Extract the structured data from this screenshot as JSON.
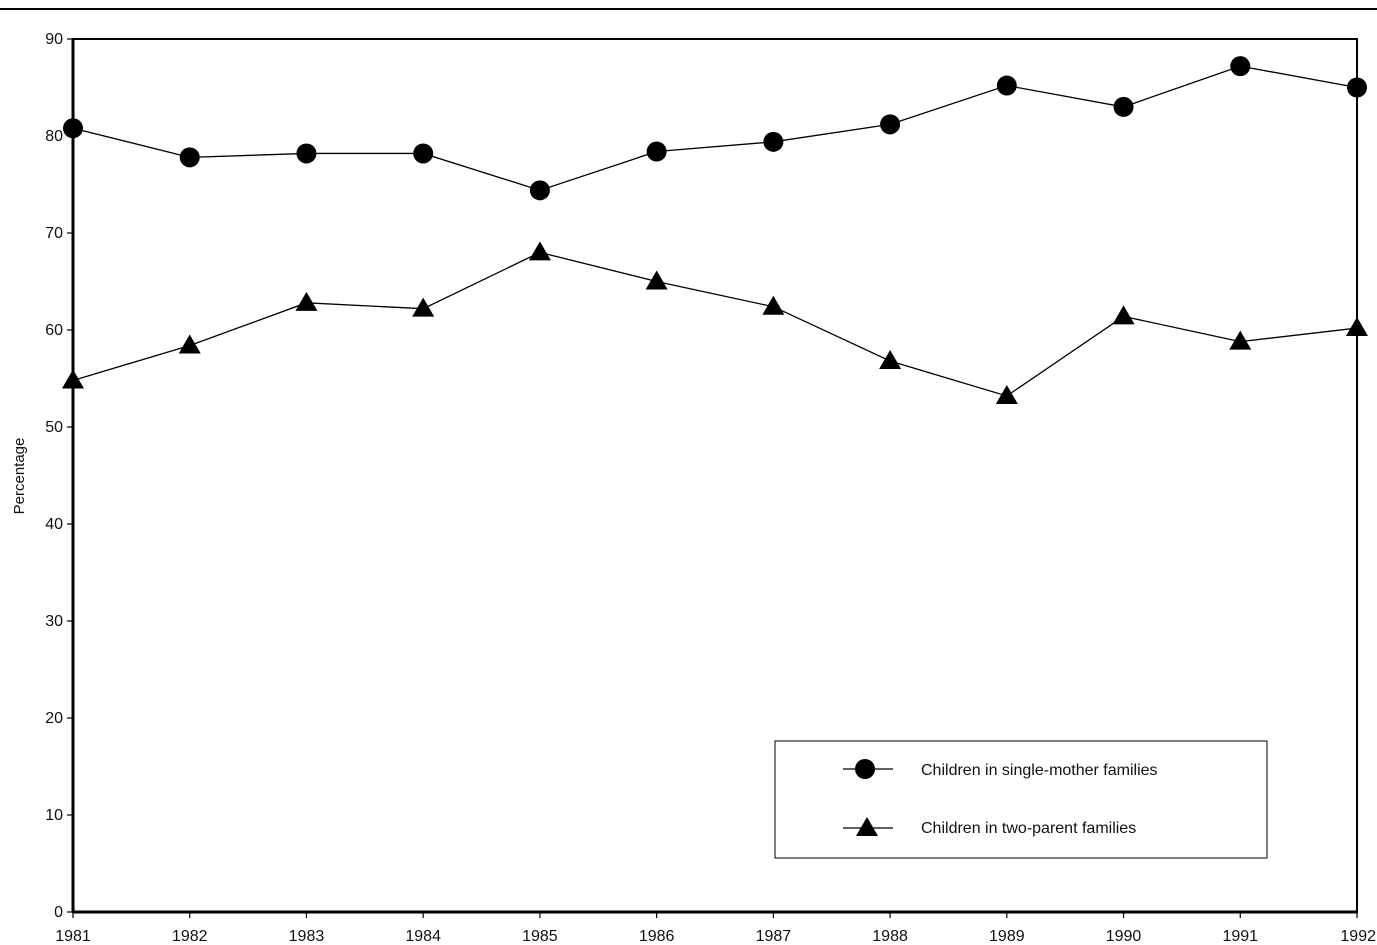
{
  "chart_data": {
    "type": "line",
    "title": "",
    "xlabel": "",
    "ylabel": "Percentage",
    "x": [
      "1981",
      "1982",
      "1983",
      "1984",
      "1985",
      "1986",
      "1987",
      "1988",
      "1989",
      "1990",
      "1991",
      "1992"
    ],
    "ylim": [
      0,
      90
    ],
    "yticks": [
      "0",
      "10",
      "20",
      "30",
      "40",
      "50",
      "60",
      "70",
      "80",
      "90"
    ],
    "grid": false,
    "legend_position": "bottom-right",
    "series": [
      {
        "name": "Children in single-mother families",
        "marker": "circle",
        "color": "#000000",
        "values": [
          80.8,
          77.8,
          78.2,
          78.2,
          74.4,
          78.4,
          79.4,
          81.2,
          85.2,
          83.0,
          87.2,
          85.0
        ]
      },
      {
        "name": "Children in two-parent families",
        "marker": "triangle",
        "color": "#000000",
        "values": [
          54.8,
          58.4,
          62.8,
          62.2,
          68.0,
          65.0,
          62.4,
          56.8,
          53.2,
          61.4,
          58.8,
          60.2
        ]
      }
    ]
  }
}
